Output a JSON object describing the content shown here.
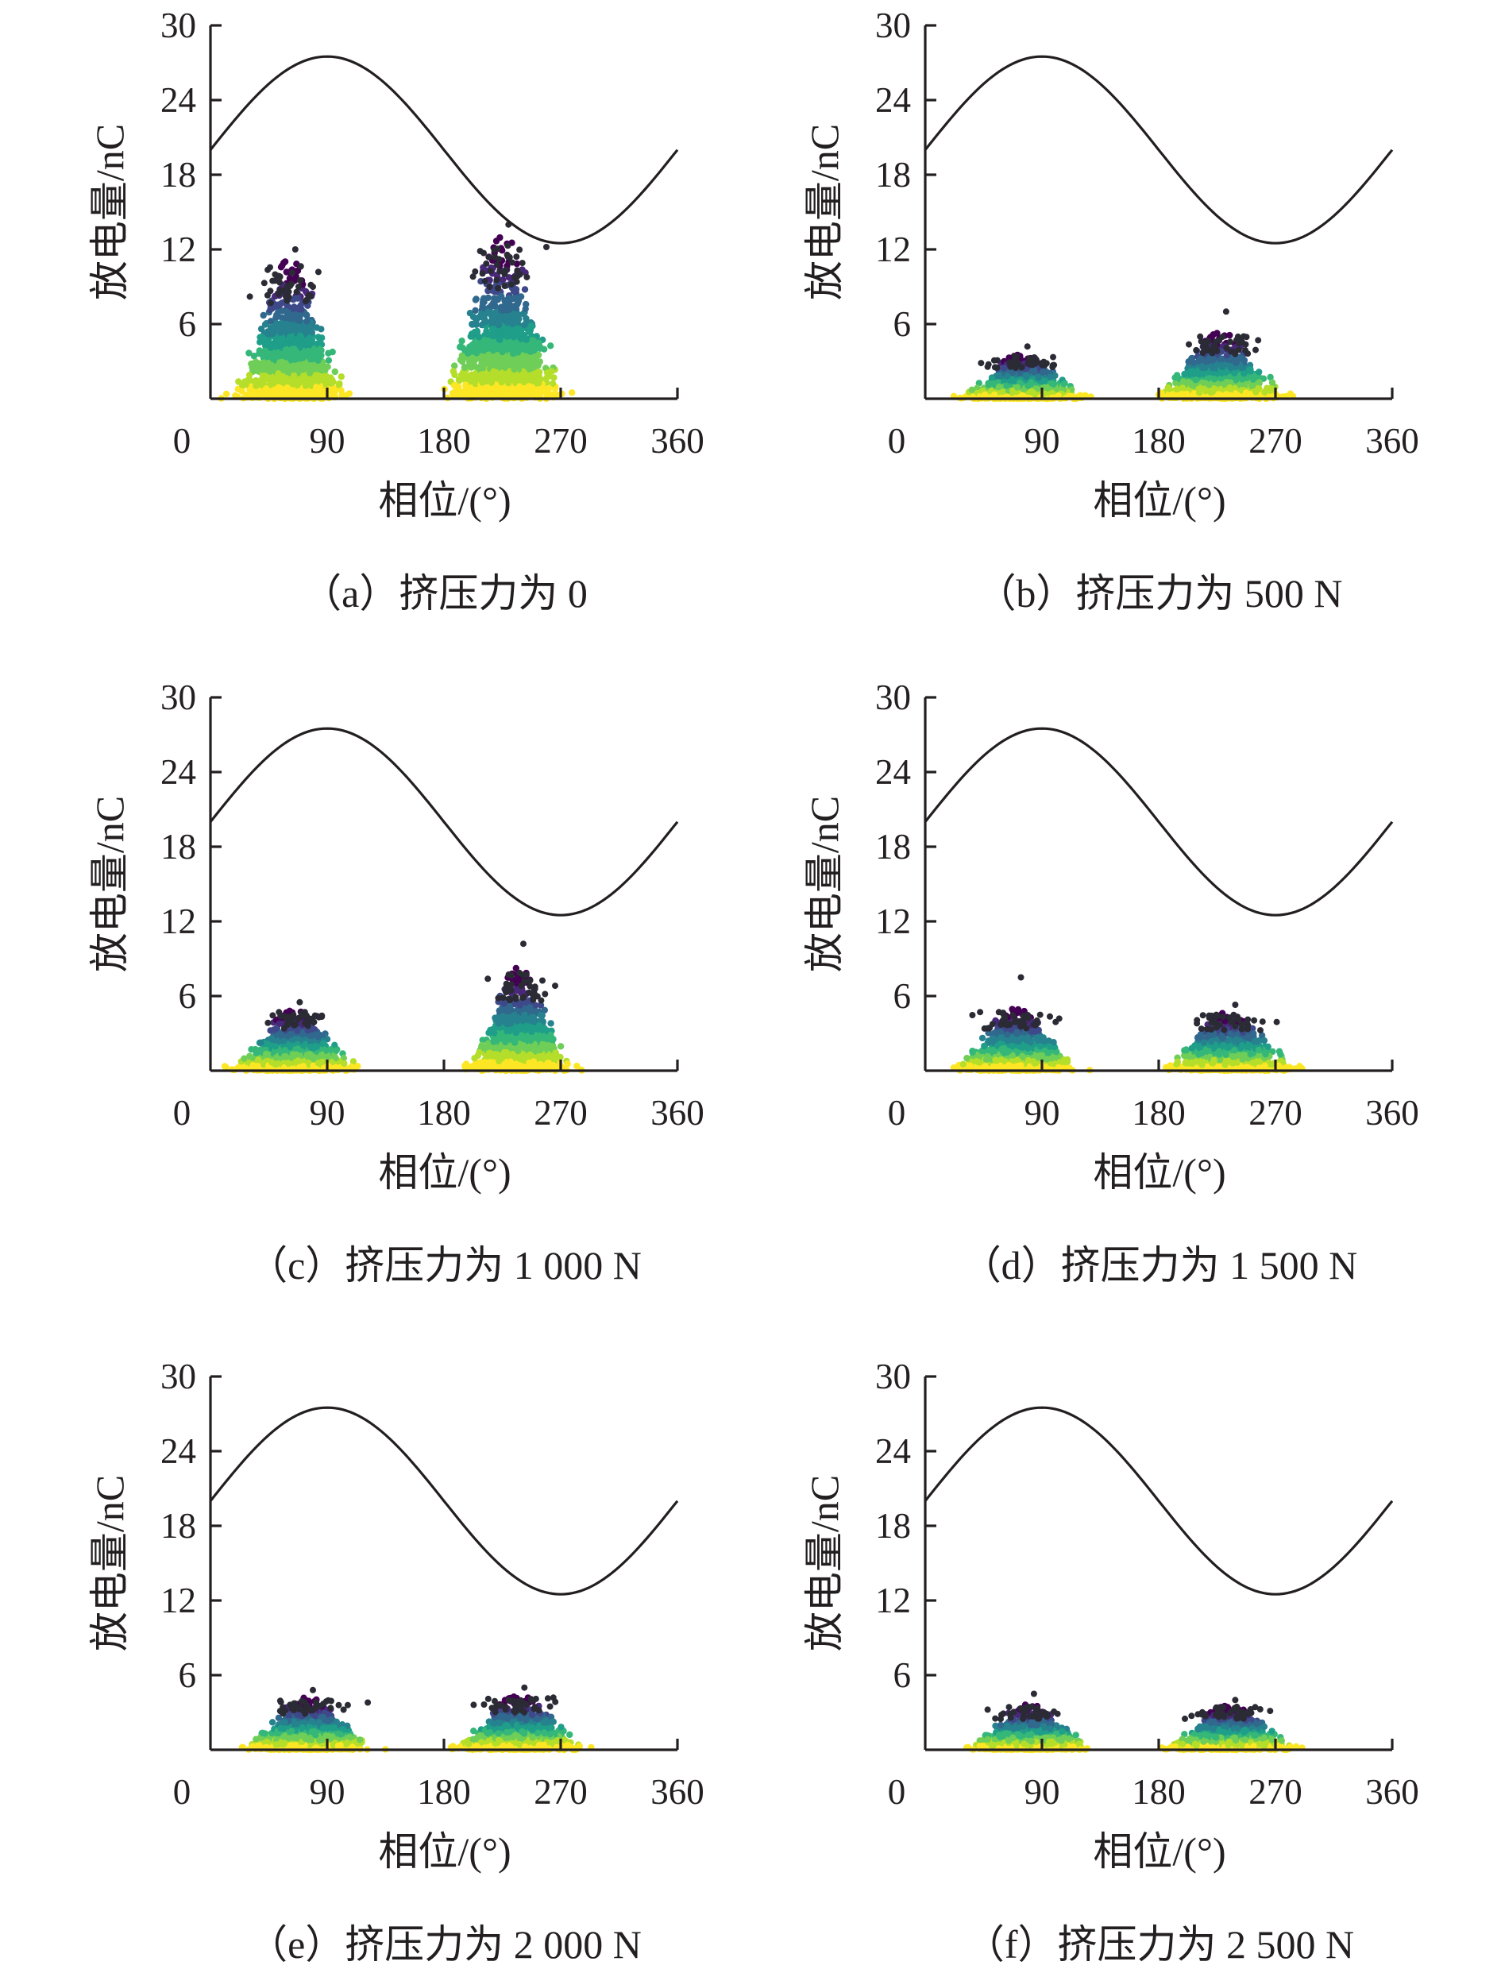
{
  "figure": {
    "colors": {
      "axis": "#231f20",
      "curve": "#231f20",
      "density_colormap": [
        "#fde725",
        "#b5de2b",
        "#6ece58",
        "#35b779",
        "#1f9e89",
        "#26828e",
        "#31688e",
        "#3e4989",
        "#482878",
        "#440154"
      ],
      "outlier_dots": "#2b2b35"
    }
  },
  "chart_data": [
    {
      "type": "scatter",
      "caption": "（a）挤压力为 0",
      "xlabel": "相位/(°)",
      "ylabel": "放电量/nC",
      "xlim": [
        0,
        360
      ],
      "ylim": [
        0,
        30
      ],
      "xticks": [
        0,
        90,
        180,
        270,
        360
      ],
      "yticks": [
        6,
        12,
        18,
        24,
        30
      ],
      "ytick_labels": [
        "6",
        "12",
        "18",
        "24",
        "30"
      ],
      "y_zero_label": "0",
      "reference_curve": {
        "type": "sine",
        "offset": 20,
        "amplitude": 7.5,
        "period_deg": 360
      },
      "series": [
        {
          "x_range": [
            0,
            138
          ],
          "center_phase": 62,
          "spread": 34,
          "peak": 10.2,
          "max_value": 12.0
        },
        {
          "x_range": [
            180,
            310
          ],
          "center_phase": 226,
          "spread": 38,
          "peak": 11.8,
          "max_value": 14.0
        }
      ]
    },
    {
      "type": "scatter",
      "caption": "（b）挤压力为 500 N",
      "xlabel": "相位/(°)",
      "ylabel": "放电量/nC",
      "xlim": [
        0,
        360
      ],
      "ylim": [
        0,
        30
      ],
      "xticks": [
        0,
        90,
        180,
        270,
        360
      ],
      "yticks": [
        6,
        12,
        18,
        24,
        30
      ],
      "ytick_labels": [
        "6",
        "12",
        "18",
        "24",
        "30"
      ],
      "y_zero_label": "0",
      "reference_curve": {
        "type": "sine",
        "offset": 20,
        "amplitude": 7.5,
        "period_deg": 360
      },
      "series": [
        {
          "x_range": [
            0,
            130
          ],
          "center_phase": 75,
          "spread": 38,
          "peak": 3.3,
          "max_value": 4.2
        },
        {
          "x_range": [
            180,
            305
          ],
          "center_phase": 228,
          "spread": 40,
          "peak": 4.8,
          "max_value": 7.0
        }
      ]
    },
    {
      "type": "scatter",
      "caption": "（c）挤压力为 1 000 N",
      "xlabel": "相位/(°)",
      "ylabel": "放电量/nC",
      "xlim": [
        0,
        360
      ],
      "ylim": [
        0,
        30
      ],
      "xticks": [
        0,
        90,
        180,
        270,
        360
      ],
      "yticks": [
        6,
        12,
        18,
        24,
        30
      ],
      "ytick_labels": [
        "6",
        "12",
        "18",
        "24",
        "30"
      ],
      "y_zero_label": "0",
      "reference_curve": {
        "type": "sine",
        "offset": 20,
        "amplitude": 7.5,
        "period_deg": 360
      },
      "series": [
        {
          "x_range": [
            0,
            130
          ],
          "center_phase": 65,
          "spread": 38,
          "peak": 4.5,
          "max_value": 5.5
        },
        {
          "x_range": [
            180,
            310
          ],
          "center_phase": 238,
          "spread": 32,
          "peak": 7.5,
          "max_value": 10.2
        }
      ]
    },
    {
      "type": "scatter",
      "caption": "（d）挤压力为 1 500 N",
      "xlabel": "相位/(°)",
      "ylabel": "放电量/nC",
      "xlim": [
        0,
        360
      ],
      "ylim": [
        0,
        30
      ],
      "xticks": [
        0,
        90,
        180,
        270,
        360
      ],
      "yticks": [
        6,
        12,
        18,
        24,
        30
      ],
      "ytick_labels": [
        "6",
        "12",
        "18",
        "24",
        "30"
      ],
      "y_zero_label": "0",
      "reference_curve": {
        "type": "sine",
        "offset": 20,
        "amplitude": 7.5,
        "period_deg": 360
      },
      "series": [
        {
          "x_range": [
            0,
            130
          ],
          "center_phase": 70,
          "spread": 38,
          "peak": 4.5,
          "max_value": 7.5
        },
        {
          "x_range": [
            180,
            305
          ],
          "center_phase": 235,
          "spread": 40,
          "peak": 4.3,
          "max_value": 5.3
        }
      ]
    },
    {
      "type": "scatter",
      "caption": "（e）挤压力为 2 000 N",
      "xlabel": "相位/(°)",
      "ylabel": "放电量/nC",
      "xlim": [
        0,
        360
      ],
      "ylim": [
        0,
        30
      ],
      "xticks": [
        0,
        90,
        180,
        270,
        360
      ],
      "yticks": [
        6,
        12,
        18,
        24,
        30
      ],
      "ytick_labels": [
        "6",
        "12",
        "18",
        "24",
        "30"
      ],
      "y_zero_label": "0",
      "reference_curve": {
        "type": "sine",
        "offset": 20,
        "amplitude": 7.5,
        "period_deg": 360
      },
      "series": [
        {
          "x_range": [
            0,
            135
          ],
          "center_phase": 75,
          "spread": 40,
          "peak": 3.8,
          "max_value": 4.8
        },
        {
          "x_range": [
            180,
            315
          ],
          "center_phase": 238,
          "spread": 40,
          "peak": 4.0,
          "max_value": 5.0
        }
      ]
    },
    {
      "type": "scatter",
      "caption": "（f）挤压力为 2 500 N",
      "xlabel": "相位/(°)",
      "ylabel": "放电量/nC",
      "xlim": [
        0,
        360
      ],
      "ylim": [
        0,
        30
      ],
      "xticks": [
        0,
        90,
        180,
        270,
        360
      ],
      "yticks": [
        6,
        12,
        18,
        24,
        30
      ],
      "ytick_labels": [
        "6",
        "12",
        "18",
        "24",
        "30"
      ],
      "y_zero_label": "0",
      "reference_curve": {
        "type": "sine",
        "offset": 20,
        "amplitude": 7.5,
        "period_deg": 360
      },
      "series": [
        {
          "x_range": [
            0,
            130
          ],
          "center_phase": 80,
          "spread": 38,
          "peak": 3.3,
          "max_value": 4.5
        },
        {
          "x_range": [
            180,
            310
          ],
          "center_phase": 235,
          "spread": 40,
          "peak": 3.3,
          "max_value": 4.0
        }
      ]
    }
  ]
}
